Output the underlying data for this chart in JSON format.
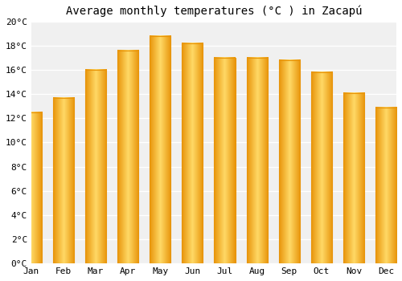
{
  "title": "Average monthly temperatures (°C ) in Zacapú",
  "months": [
    "Jan",
    "Feb",
    "Mar",
    "Apr",
    "May",
    "Jun",
    "Jul",
    "Aug",
    "Sep",
    "Oct",
    "Nov",
    "Dec"
  ],
  "values": [
    12.5,
    13.7,
    16.0,
    17.6,
    18.8,
    18.2,
    17.0,
    17.0,
    16.8,
    15.8,
    14.1,
    12.9
  ],
  "bar_color_center": "#FFD966",
  "bar_color_edge": "#E8940A",
  "ylim": [
    0,
    20
  ],
  "yticks": [
    0,
    2,
    4,
    6,
    8,
    10,
    12,
    14,
    16,
    18,
    20
  ],
  "background_color": "#ffffff",
  "plot_bg_color": "#f0f0f0",
  "grid_color": "#ffffff",
  "title_fontsize": 10,
  "tick_fontsize": 8,
  "bar_width": 0.65
}
